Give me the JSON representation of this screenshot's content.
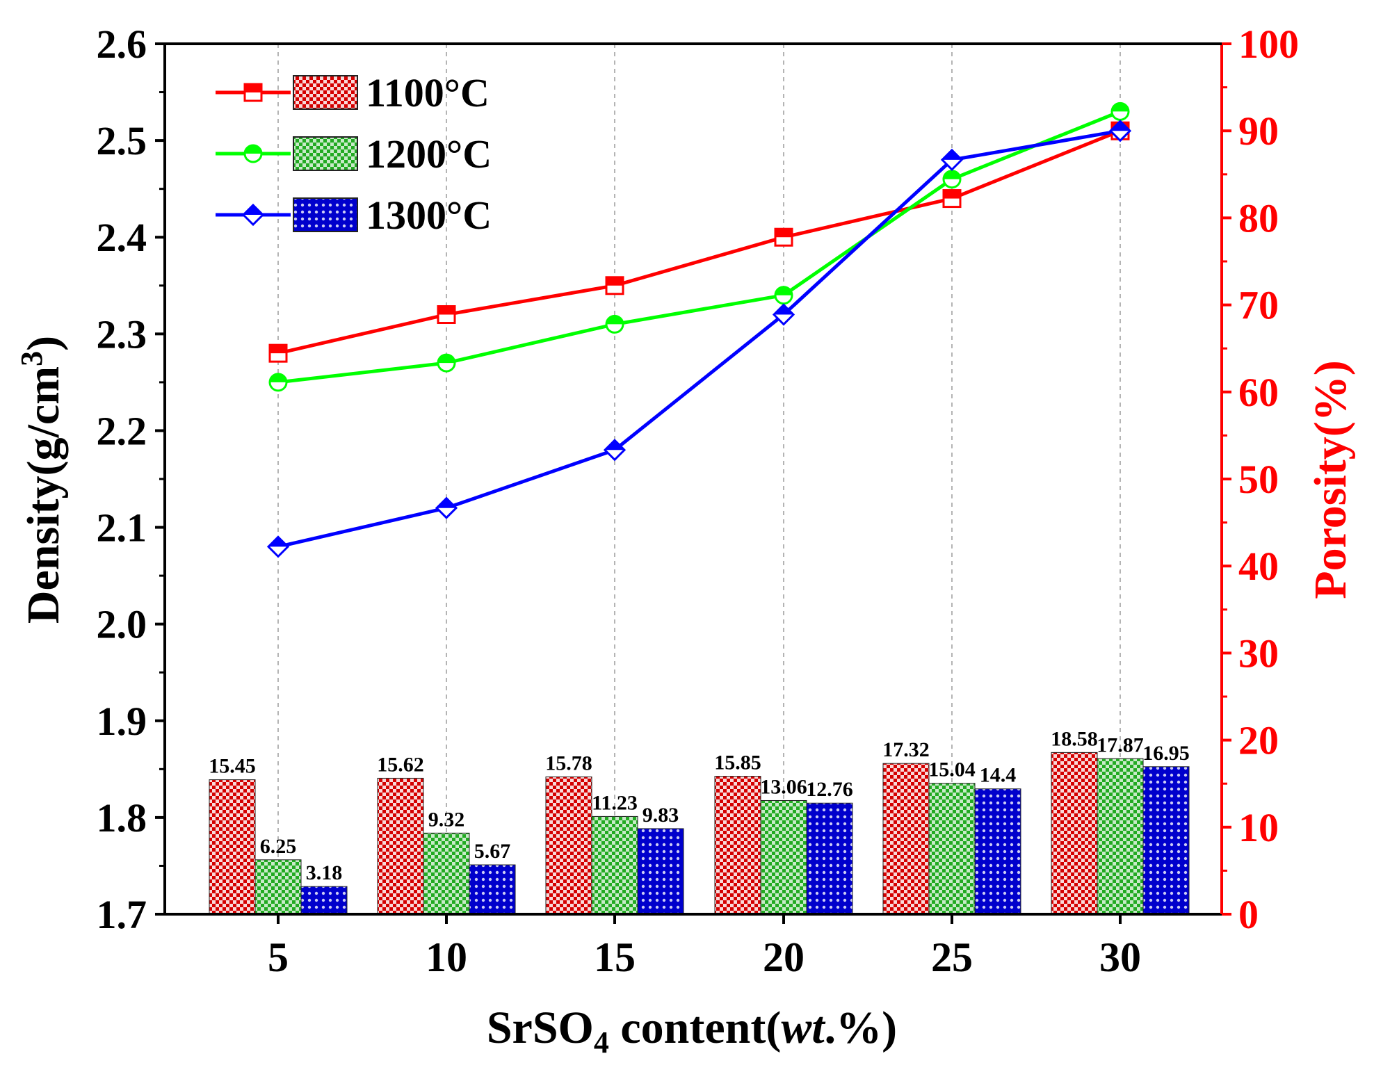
{
  "colors": {
    "s1100": "#ff0000",
    "s1200": "#00ff00",
    "s1300": "#0000ff",
    "bar1100": "#d40000",
    "bar1200": "#22aa22",
    "bar1300": "#0000cc",
    "axis": "#000000",
    "right_axis": "#ff0000",
    "grid": "#b4b4b4"
  },
  "chart_data": {
    "type": "bar+line",
    "title": "",
    "xlabel": {
      "pre": "SrSO",
      "sub": "4",
      "mid": " content(",
      "ital": "wt",
      "post": ".%)"
    },
    "ylabel_left": {
      "pre": "Density(g/cm",
      "sup": "3",
      "post": ")"
    },
    "ylabel_right": "Porosity(%)",
    "categories": [
      "5",
      "10",
      "15",
      "20",
      "25",
      "30"
    ],
    "x": [
      5,
      10,
      15,
      20,
      25,
      30
    ],
    "ylim_left": [
      1.7,
      2.6
    ],
    "ylim_right": [
      0,
      100
    ],
    "left_ticks": [
      "1.7",
      "1.8",
      "1.9",
      "2.0",
      "2.1",
      "2.2",
      "2.3",
      "2.4",
      "2.5",
      "2.6"
    ],
    "right_ticks": [
      "0",
      "10",
      "20",
      "30",
      "40",
      "50",
      "60",
      "70",
      "80",
      "90",
      "100"
    ],
    "vertical_grid": true,
    "legend_position": "top-left",
    "series": [
      {
        "name": "1100°C",
        "key": "s1100",
        "marker": "square",
        "density": [
          2.28,
          2.32,
          2.35,
          2.4,
          2.44,
          2.51
        ],
        "porosity": [
          15.45,
          15.62,
          15.78,
          15.85,
          17.32,
          18.58
        ],
        "porosity_labels": [
          "15.45",
          "15.62",
          "15.78",
          "15.85",
          "17.32",
          "18.58"
        ]
      },
      {
        "name": "1200°C",
        "key": "s1200",
        "marker": "circle",
        "density": [
          2.25,
          2.27,
          2.31,
          2.34,
          2.46,
          2.53
        ],
        "porosity": [
          6.25,
          9.32,
          11.23,
          13.06,
          15.04,
          17.87
        ],
        "porosity_labels": [
          "6.25",
          "9.32",
          "11.23",
          "13.06",
          "15.04",
          "17.87"
        ]
      },
      {
        "name": "1300°C",
        "key": "s1300",
        "marker": "diamond",
        "density": [
          2.08,
          2.12,
          2.18,
          2.32,
          2.48,
          2.51
        ],
        "porosity": [
          3.18,
          5.67,
          9.83,
          12.76,
          14.4,
          16.95
        ],
        "porosity_labels": [
          "3.18",
          "5.67",
          "9.83",
          "12.76",
          "14.4",
          "16.95"
        ]
      }
    ]
  }
}
